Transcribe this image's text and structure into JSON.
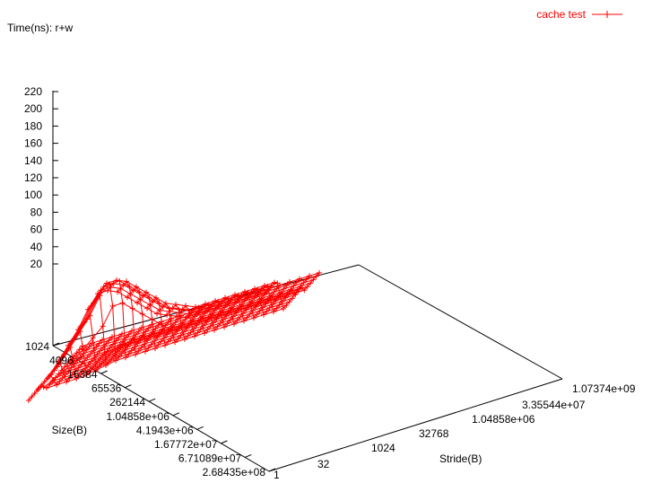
{
  "chart_data": {
    "type": "surface",
    "title": "",
    "zlabel": "Time(ns): r+w",
    "xlabel": "Stride(B)",
    "ylabel": "Size(B)",
    "legend": {
      "label": "cache test",
      "placement": "top-right"
    },
    "z_ticks": [
      "220",
      "200",
      "180",
      "160",
      "140",
      "120",
      "100",
      "80",
      "60",
      "40",
      "20"
    ],
    "zlim": [
      0,
      220
    ],
    "stride_ticks": [
      "1",
      "32",
      "1024",
      "32768",
      "1.04858e+06",
      "3.35544e+07",
      "1.07374e+09"
    ],
    "size_ticks": [
      "1024",
      "4096",
      "16384",
      "65536",
      "262144",
      "1.04858e+06",
      "4.1943e+06",
      "1.67772e+07",
      "6.71089e+07",
      "2.68435e+08"
    ],
    "stride_log2": [
      2,
      3,
      4,
      5,
      6,
      7,
      8,
      9,
      10,
      11,
      12,
      13,
      14,
      15,
      16,
      17,
      18,
      19,
      20,
      21,
      22,
      23,
      24,
      25,
      26
    ],
    "size_log2": [
      10,
      11,
      12,
      13,
      14,
      15,
      16,
      17,
      18,
      19,
      20,
      21,
      22,
      23,
      24,
      25,
      26,
      27,
      28
    ],
    "time_ns": [
      [
        5,
        5,
        5,
        5,
        5,
        5,
        5,
        5,
        5,
        5,
        5,
        5,
        5,
        5,
        5,
        5,
        5,
        5,
        5,
        5,
        5,
        5,
        5,
        5,
        5
      ],
      [
        5,
        5,
        5,
        5,
        5,
        5,
        5,
        5,
        5,
        5,
        5,
        5,
        5,
        5,
        5,
        5,
        5,
        5,
        5,
        5,
        5,
        5,
        5,
        5,
        5
      ],
      [
        5,
        5,
        5,
        5,
        5,
        5,
        5,
        5,
        5,
        5,
        5,
        5,
        5,
        5,
        5,
        5,
        5,
        5,
        5,
        5,
        5,
        5,
        5,
        5,
        5
      ],
      [
        5,
        5,
        5,
        5,
        5,
        5,
        5,
        5,
        5,
        5,
        5,
        5,
        5,
        5,
        5,
        5,
        5,
        5,
        5,
        5,
        5,
        5,
        5,
        5,
        5
      ],
      [
        5,
        5,
        5,
        5,
        5,
        5,
        5,
        5,
        5,
        5,
        5,
        5,
        5,
        5,
        5,
        5,
        5,
        5,
        5,
        5,
        5,
        5,
        5,
        5,
        5
      ],
      [
        5,
        5,
        5,
        5,
        5,
        5,
        5,
        5,
        5,
        5,
        5,
        5,
        5,
        5,
        5,
        5,
        5,
        5,
        5,
        5,
        5,
        5,
        5,
        5,
        5
      ],
      [
        5,
        5,
        5,
        5,
        6,
        8,
        10,
        12,
        12,
        12,
        12,
        12,
        12,
        12,
        12,
        12,
        12,
        12,
        12,
        12,
        12,
        12,
        12,
        12,
        12
      ],
      [
        5,
        5,
        5,
        5,
        6,
        8,
        10,
        12,
        12,
        12,
        12,
        12,
        12,
        12,
        12,
        12,
        12,
        12,
        12,
        12,
        12,
        12,
        12,
        12,
        12
      ],
      [
        5,
        5,
        5,
        5,
        6,
        8,
        10,
        12,
        12,
        12,
        12,
        12,
        12,
        12,
        12,
        12,
        12,
        12,
        12,
        12,
        12,
        12,
        12,
        12,
        12
      ],
      [
        5,
        5,
        5,
        5,
        6,
        8,
        10,
        12,
        12,
        12,
        12,
        12,
        12,
        12,
        12,
        12,
        12,
        12,
        12,
        12,
        12,
        12,
        12,
        12,
        12
      ],
      [
        5,
        5,
        5,
        5,
        6,
        8,
        10,
        12,
        12,
        12,
        12,
        12,
        12,
        12,
        12,
        12,
        12,
        12,
        12,
        12,
        12,
        12,
        12,
        12,
        12
      ],
      [
        5,
        5,
        5,
        5,
        6,
        8,
        10,
        12,
        12,
        12,
        12,
        12,
        12,
        12,
        12,
        12,
        12,
        12,
        12,
        12,
        12,
        12,
        12,
        12,
        12
      ],
      [
        5,
        5,
        5,
        5,
        6,
        8,
        10,
        12,
        12,
        12,
        12,
        12,
        12,
        12,
        12,
        12,
        12,
        12,
        12,
        12,
        12,
        12,
        12,
        12,
        12
      ],
      [
        10,
        15,
        20,
        30,
        40,
        50,
        60,
        80,
        80,
        70,
        60,
        50,
        40,
        30,
        30,
        30,
        30,
        30,
        30,
        30,
        30,
        30,
        30,
        30,
        30
      ],
      [
        15,
        25,
        35,
        50,
        65,
        80,
        100,
        110,
        110,
        100,
        90,
        80,
        70,
        60,
        55,
        50,
        50,
        50,
        50,
        50,
        50,
        50,
        50,
        50,
        50
      ],
      [
        15,
        25,
        35,
        50,
        65,
        80,
        100,
        115,
        115,
        110,
        100,
        90,
        80,
        70,
        65,
        60,
        55,
        55,
        55,
        55,
        55,
        55,
        55,
        55,
        55
      ],
      [
        15,
        25,
        35,
        50,
        65,
        80,
        100,
        115,
        115,
        110,
        100,
        90,
        80,
        70,
        65,
        60,
        55,
        55,
        55,
        55,
        55,
        55,
        55,
        55,
        55
      ],
      [
        15,
        25,
        35,
        50,
        65,
        80,
        100,
        115,
        115,
        110,
        100,
        90,
        80,
        70,
        65,
        60,
        55,
        55,
        55,
        55,
        55,
        55,
        55,
        55,
        55
      ],
      [
        15,
        25,
        35,
        50,
        65,
        80,
        100,
        115,
        115,
        110,
        100,
        90,
        80,
        70,
        65,
        60,
        55,
        55,
        55,
        55,
        55,
        55,
        55,
        55,
        55
      ]
    ],
    "colors": {
      "series": "#ff0000",
      "axes": "#000000",
      "background": "#ffffff"
    }
  }
}
